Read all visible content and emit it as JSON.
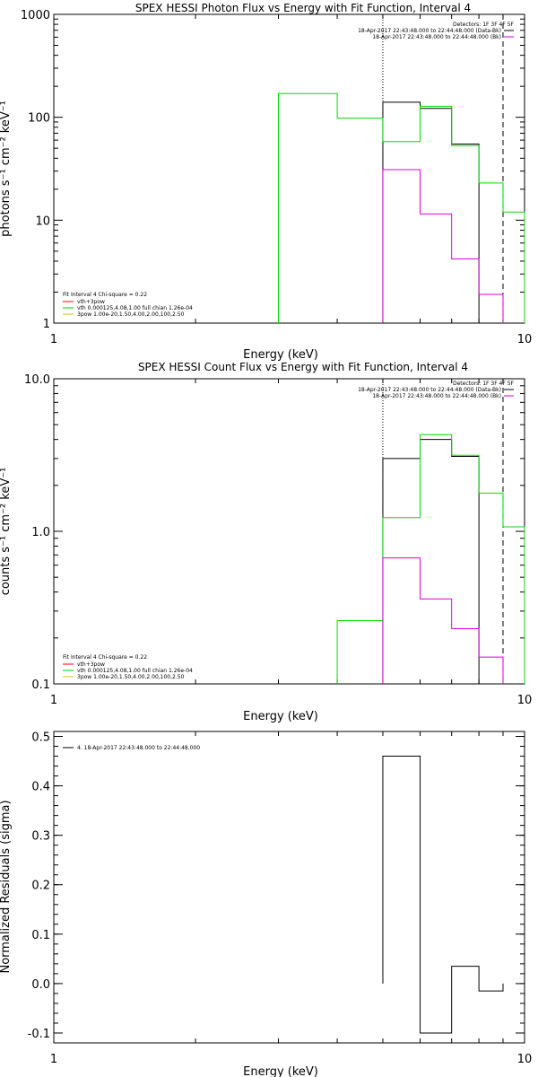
{
  "chart_data": [
    {
      "type": "line",
      "title": "SPEX HESSI Photon Flux vs Energy with Fit Function, Interval 4",
      "xlabel": "Energy (keV)",
      "ylabel": "photons s⁻¹ cm⁻² keV⁻¹",
      "xscale": "log",
      "yscale": "log",
      "xlim": [
        1,
        10
      ],
      "ylim": [
        1,
        1000
      ],
      "xticks": [
        {
          "v": 1,
          "label": "1"
        },
        {
          "v": 10,
          "label": "10"
        }
      ],
      "yticks": [
        {
          "v": 1,
          "label": "1"
        },
        {
          "v": 10,
          "label": "10"
        },
        {
          "v": 100,
          "label": "100"
        },
        {
          "v": 1000,
          "label": "1000"
        }
      ],
      "legend_top": {
        "placement": "top-right",
        "header": "Detectors: 1F 3F 4F 5F",
        "lines": [
          {
            "text": "18-Apr-2017 22:43:48.000 to 22:44:48.000 (Data-Bk)",
            "color": "#000000"
          },
          {
            "text": "18-Apr-2017 22:43:48.000 to 22:44:48.000 (Bk)",
            "color": "#cc00cc"
          }
        ]
      },
      "legend_bottom": {
        "placement": "bottom-left",
        "header": "Fit Interval  4    Chi-square = 0.22",
        "lines": [
          {
            "text": "vth+3pow",
            "color": "#ff0000"
          },
          {
            "text": "vth 0.000125,4.08,1.00   full chian 1.26e-04",
            "color": "#00cc00"
          },
          {
            "text": "3pow 1.00e-20,1.50,4.00,2.00,100,2.50",
            "color": "#cccc00"
          }
        ]
      },
      "vlines": [
        {
          "x": 5.0,
          "style": "dotted"
        },
        {
          "x": 9.0,
          "style": "dashed"
        }
      ],
      "series": [
        {
          "color": "#000000",
          "edges": [
            5.0,
            6.0,
            7.0,
            8.0,
            9.0
          ],
          "values": [
            140,
            122,
            55,
            0.5
          ]
        },
        {
          "color": "#00dd00",
          "edges": [
            3.0,
            4.0,
            5.0,
            6.0,
            7.0,
            8.0,
            9.0,
            10.0
          ],
          "values": [
            170,
            98,
            58,
            128,
            53,
            23,
            12
          ]
        },
        {
          "color": "#dd00dd",
          "edges": [
            5.0,
            6.0,
            7.0,
            8.0,
            9.0
          ],
          "values": [
            31,
            11.5,
            4.2,
            1.9
          ]
        }
      ]
    },
    {
      "type": "line",
      "title": "SPEX HESSI Count Flux vs Energy with Fit Function, Interval 4",
      "xlabel": "Energy (keV)",
      "ylabel": "counts s⁻¹ cm⁻² keV⁻¹",
      "xscale": "log",
      "yscale": "log",
      "xlim": [
        1,
        10
      ],
      "ylim": [
        0.1,
        10
      ],
      "xticks": [
        {
          "v": 1,
          "label": "1"
        },
        {
          "v": 10,
          "label": "10"
        }
      ],
      "yticks": [
        {
          "v": 0.1,
          "label": "0.1"
        },
        {
          "v": 1,
          "label": "1.0"
        },
        {
          "v": 10,
          "label": "10.0"
        }
      ],
      "legend_top": {
        "placement": "top-right",
        "header": "Detectors: 1F 3F 4F 5F",
        "lines": [
          {
            "text": "18-Apr-2017 22:43:48.000 to 22:44:48.000 (Data-Bk)",
            "color": "#000000"
          },
          {
            "text": "18-Apr-2017 22:43:48.000 to 22:44:48.000 (Bk)",
            "color": "#cc00cc"
          }
        ]
      },
      "legend_bottom": {
        "placement": "bottom-left",
        "header": "Fit Interval  4    Chi-square = 0.22",
        "lines": [
          {
            "text": "vth+3pow",
            "color": "#ff0000"
          },
          {
            "text": "vth 0.000125,4.08,1.00   full chian 1.26e-04",
            "color": "#00cc00"
          },
          {
            "text": "3pow 1.00e-20,1.50,4.00,2.00,100,2.50",
            "color": "#cccc00"
          }
        ]
      },
      "vlines": [
        {
          "x": 5.0,
          "style": "dotted"
        },
        {
          "x": 9.0,
          "style": "dashed"
        }
      ],
      "series": [
        {
          "color": "#000000",
          "edges": [
            5.0,
            6.0,
            7.0,
            8.0,
            9.0
          ],
          "values": [
            3.0,
            4.0,
            3.1,
            0.05
          ]
        },
        {
          "color": "#00dd00",
          "edges": [
            4.0,
            5.0,
            6.0,
            7.0,
            8.0,
            9.0,
            10.0
          ],
          "values": [
            0.26,
            1.23,
            4.3,
            3.15,
            1.78,
            1.07
          ]
        },
        {
          "color": "#dd00dd",
          "edges": [
            5.0,
            6.0,
            7.0,
            8.0,
            9.0
          ],
          "values": [
            0.67,
            0.36,
            0.23,
            0.15
          ]
        }
      ]
    },
    {
      "type": "line",
      "title": "",
      "xlabel": "Energy (keV)",
      "ylabel": "Normalized Residuals (sigma)",
      "xscale": "log",
      "yscale": "linear",
      "xlim": [
        1,
        10
      ],
      "ylim": [
        -0.12,
        0.51
      ],
      "xticks": [
        {
          "v": 1,
          "label": "1"
        },
        {
          "v": 10,
          "label": "10"
        }
      ],
      "yticks": [
        {
          "v": -0.1,
          "label": "-0.1"
        },
        {
          "v": 0.0,
          "label": "0.0"
        },
        {
          "v": 0.1,
          "label": "0.1"
        },
        {
          "v": 0.2,
          "label": "0.2"
        },
        {
          "v": 0.3,
          "label": "0.3"
        },
        {
          "v": 0.4,
          "label": "0.4"
        },
        {
          "v": 0.5,
          "label": "0.5"
        }
      ],
      "legend_top": {
        "placement": "top-left",
        "header": "",
        "lines": [
          {
            "text": "4. 18-Apr-2017 22:43:48.000 to 22:44:48.000",
            "color": "#000000"
          }
        ]
      },
      "vlines": [],
      "series": [
        {
          "color": "#000000",
          "edges": [
            5.0,
            6.0,
            7.0,
            8.0,
            9.0
          ],
          "values": [
            0.46,
            -0.1,
            0.035,
            -0.015
          ],
          "baseline": 0.0
        }
      ]
    }
  ]
}
